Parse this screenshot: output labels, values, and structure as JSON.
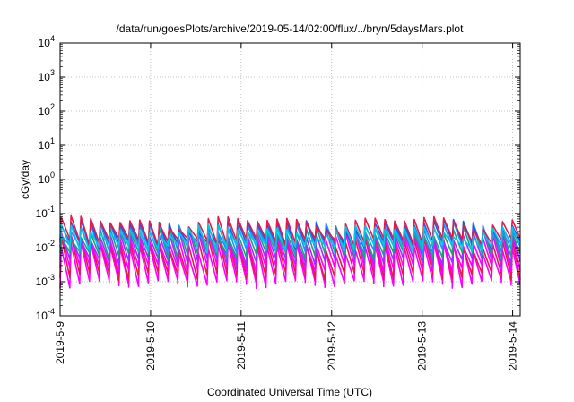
{
  "chart_data": {
    "type": "line",
    "title": "/data/run/goesPlots/archive/2019-05-14/02:00/flux/../bryn/5daysMars.plot",
    "xlabel": "Coordinated Universal Time (UTC)",
    "ylabel": "cGy/day",
    "y_scale": "log",
    "ylim": [
      0.0001,
      10000
    ],
    "y_ticks": [
      {
        "value": 0.0001,
        "base": "10",
        "exp": "-4"
      },
      {
        "value": 0.001,
        "base": "10",
        "exp": "-3"
      },
      {
        "value": 0.01,
        "base": "10",
        "exp": "-2"
      },
      {
        "value": 0.1,
        "base": "10",
        "exp": "-1"
      },
      {
        "value": 1,
        "base": "10",
        "exp": "0"
      },
      {
        "value": 10,
        "base": "10",
        "exp": "1"
      },
      {
        "value": 100,
        "base": "10",
        "exp": "2"
      },
      {
        "value": 1000,
        "base": "10",
        "exp": "3"
      },
      {
        "value": 10000,
        "base": "10",
        "exp": "4"
      }
    ],
    "x_unit": "day",
    "xlim": [
      "2019-05-09 00:00",
      "2019-05-14 02:00"
    ],
    "x_ticks": [
      "2019-5-9",
      "2019-5-10",
      "2019-5-11",
      "2019-5-12",
      "2019-5-13",
      "2019-5-14"
    ],
    "grid": true,
    "legend": "none",
    "sawtooth_period_hours": 2.6,
    "series": [
      {
        "color": "#ff00ff",
        "peak": 0.014,
        "trough": 0.0009
      },
      {
        "color": "#e6194b",
        "peak": 0.02,
        "trough": 0.0015
      },
      {
        "color": "#ff00ff",
        "peak": 0.026,
        "trough": 0.0025
      },
      {
        "color": "#9b30ff",
        "peak": 0.034,
        "trough": 0.004
      },
      {
        "color": "#1aa37a",
        "peak": 0.042,
        "trough": 0.006
      },
      {
        "color": "#1e90ff",
        "peak": 0.055,
        "trough": 0.009
      },
      {
        "color": "#3050e0",
        "peak": 0.065,
        "trough": 0.012
      },
      {
        "color": "#e6194b",
        "peak": 0.08,
        "trough": 0.015
      },
      {
        "color": "#00c8e6",
        "peak": 0.045,
        "trough": 0.01
      }
    ]
  }
}
